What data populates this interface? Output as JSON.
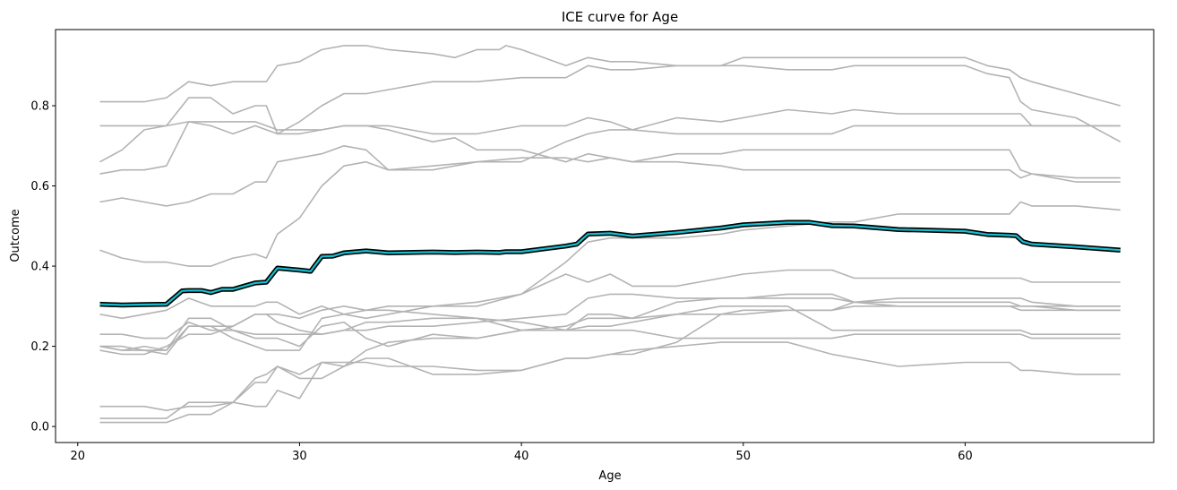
{
  "chart_data": {
    "type": "line",
    "title": "ICE curve for Age",
    "xlabel": "Age",
    "ylabel": "Outcome",
    "xlim": [
      19,
      68.5
    ],
    "ylim": [
      -0.04,
      0.99
    ],
    "xticks": [
      20,
      30,
      40,
      50,
      60
    ],
    "yticks": [
      0.0,
      0.2,
      0.4,
      0.6,
      0.8
    ],
    "xtick_labels": [
      "20",
      "30",
      "40",
      "50",
      "60"
    ],
    "ytick_labels": [
      "0.0",
      "0.2",
      "0.4",
      "0.6",
      "0.8"
    ],
    "grid": false,
    "colors": {
      "ice_line": "#b3b3b3",
      "average_outline": "#000000",
      "average_line": "#17becf",
      "axes": "#000000",
      "background": "#ffffff"
    },
    "ice_series": [
      {
        "x": [
          21,
          22,
          23,
          24,
          25,
          26,
          27,
          28,
          28.5,
          29,
          30,
          31,
          32,
          33,
          34,
          36,
          37,
          38,
          39,
          39.3,
          40,
          41,
          42,
          43,
          44,
          45,
          47,
          49,
          50,
          52,
          54,
          55,
          57,
          58,
          60,
          61,
          62,
          62.5,
          63,
          65,
          67
        ],
        "y": [
          0.81,
          0.81,
          0.81,
          0.82,
          0.86,
          0.85,
          0.86,
          0.86,
          0.86,
          0.9,
          0.91,
          0.94,
          0.95,
          0.95,
          0.94,
          0.93,
          0.92,
          0.94,
          0.94,
          0.95,
          0.94,
          0.92,
          0.9,
          0.92,
          0.91,
          0.91,
          0.9,
          0.9,
          0.92,
          0.92,
          0.92,
          0.92,
          0.92,
          0.92,
          0.92,
          0.9,
          0.89,
          0.87,
          0.86,
          0.83,
          0.8
        ]
      },
      {
        "x": [
          21,
          22,
          23,
          24,
          25,
          26,
          27,
          28,
          28.5,
          29,
          30,
          31,
          32,
          33,
          34,
          36,
          38,
          40,
          42,
          43,
          44,
          45,
          47,
          49,
          50,
          52,
          54,
          55,
          57,
          60,
          61,
          62,
          62.5,
          63,
          65,
          67
        ],
        "y": [
          0.66,
          0.69,
          0.74,
          0.75,
          0.82,
          0.82,
          0.78,
          0.8,
          0.8,
          0.73,
          0.76,
          0.8,
          0.83,
          0.83,
          0.84,
          0.86,
          0.86,
          0.87,
          0.87,
          0.9,
          0.89,
          0.89,
          0.9,
          0.9,
          0.9,
          0.89,
          0.89,
          0.9,
          0.9,
          0.9,
          0.88,
          0.87,
          0.81,
          0.79,
          0.77,
          0.71
        ]
      },
      {
        "x": [
          21,
          22,
          23,
          24,
          25,
          26,
          27,
          28,
          28.5,
          29,
          30,
          31,
          32,
          33,
          34,
          36,
          38,
          40,
          42,
          43,
          44,
          45,
          47,
          49,
          50,
          52,
          54,
          55,
          57,
          60,
          62,
          62.5,
          63,
          65,
          67
        ],
        "y": [
          0.75,
          0.75,
          0.75,
          0.75,
          0.76,
          0.76,
          0.76,
          0.76,
          0.75,
          0.74,
          0.74,
          0.74,
          0.75,
          0.75,
          0.75,
          0.73,
          0.73,
          0.75,
          0.75,
          0.77,
          0.76,
          0.74,
          0.73,
          0.73,
          0.73,
          0.73,
          0.73,
          0.75,
          0.75,
          0.75,
          0.75,
          0.75,
          0.75,
          0.75,
          0.75
        ]
      },
      {
        "x": [
          21,
          22,
          23,
          24,
          25,
          26,
          27,
          28,
          28.5,
          29,
          30,
          31,
          32,
          33,
          34,
          36,
          37,
          38,
          40,
          42,
          43,
          44,
          45,
          47,
          49,
          50,
          52,
          54,
          55,
          57,
          60,
          62,
          62.5,
          63,
          65,
          67
        ],
        "y": [
          0.63,
          0.64,
          0.64,
          0.65,
          0.76,
          0.75,
          0.73,
          0.75,
          0.74,
          0.73,
          0.73,
          0.74,
          0.75,
          0.75,
          0.74,
          0.71,
          0.72,
          0.69,
          0.69,
          0.66,
          0.68,
          0.67,
          0.66,
          0.66,
          0.65,
          0.64,
          0.64,
          0.64,
          0.64,
          0.64,
          0.64,
          0.64,
          0.62,
          0.63,
          0.62,
          0.62
        ]
      },
      {
        "x": [
          21,
          22,
          23,
          24,
          25,
          26,
          27,
          28,
          28.5,
          29,
          30,
          31,
          32,
          33,
          34,
          36,
          38,
          40,
          42,
          43,
          44,
          45,
          47,
          49,
          50,
          52,
          54,
          55,
          57,
          60,
          62,
          62.5,
          63,
          65,
          67
        ],
        "y": [
          0.56,
          0.57,
          0.56,
          0.55,
          0.56,
          0.58,
          0.58,
          0.61,
          0.61,
          0.66,
          0.67,
          0.68,
          0.7,
          0.69,
          0.64,
          0.65,
          0.66,
          0.67,
          0.67,
          0.66,
          0.67,
          0.66,
          0.68,
          0.68,
          0.69,
          0.69,
          0.69,
          0.69,
          0.69,
          0.69,
          0.69,
          0.64,
          0.63,
          0.61,
          0.61
        ]
      },
      {
        "x": [
          21,
          22,
          23,
          24,
          25,
          26,
          27,
          28,
          28.5,
          29,
          30,
          31,
          32,
          33,
          34,
          36,
          38,
          40,
          42,
          43,
          44,
          45,
          47,
          49,
          50,
          52,
          54,
          55,
          57,
          60,
          62,
          62.5,
          63,
          65,
          67
        ],
        "y": [
          0.44,
          0.42,
          0.41,
          0.41,
          0.4,
          0.4,
          0.42,
          0.43,
          0.42,
          0.48,
          0.52,
          0.6,
          0.65,
          0.66,
          0.64,
          0.64,
          0.66,
          0.66,
          0.71,
          0.73,
          0.74,
          0.74,
          0.77,
          0.76,
          0.77,
          0.79,
          0.78,
          0.79,
          0.78,
          0.78,
          0.78,
          0.78,
          0.75,
          0.75,
          0.75
        ]
      },
      {
        "x": [
          21,
          22,
          23,
          24,
          25,
          26,
          27,
          28,
          28.5,
          29,
          30,
          31,
          32,
          33,
          34,
          36,
          38,
          40,
          42,
          43,
          44,
          45,
          47,
          49,
          50,
          52,
          54,
          55,
          57,
          60,
          62,
          62.5,
          63,
          65,
          67
        ],
        "y": [
          0.19,
          0.18,
          0.18,
          0.2,
          0.23,
          0.23,
          0.25,
          0.28,
          0.28,
          0.28,
          0.27,
          0.29,
          0.3,
          0.29,
          0.3,
          0.3,
          0.31,
          0.33,
          0.41,
          0.46,
          0.47,
          0.47,
          0.47,
          0.48,
          0.49,
          0.5,
          0.51,
          0.51,
          0.53,
          0.53,
          0.53,
          0.56,
          0.55,
          0.55,
          0.54
        ]
      },
      {
        "x": [
          21,
          22,
          23,
          24,
          25,
          26,
          27,
          28,
          28.5,
          29,
          30,
          31,
          32,
          33,
          34,
          36,
          38,
          40,
          42,
          43,
          44,
          45,
          47,
          49,
          50,
          52,
          54,
          55,
          57,
          60,
          62,
          62.5,
          63,
          65,
          67
        ],
        "y": [
          0.28,
          0.27,
          0.28,
          0.29,
          0.32,
          0.3,
          0.3,
          0.3,
          0.31,
          0.31,
          0.28,
          0.3,
          0.28,
          0.27,
          0.28,
          0.3,
          0.3,
          0.33,
          0.38,
          0.36,
          0.38,
          0.35,
          0.35,
          0.37,
          0.38,
          0.39,
          0.39,
          0.37,
          0.37,
          0.37,
          0.37,
          0.37,
          0.36,
          0.36,
          0.36
        ]
      },
      {
        "x": [
          21,
          22,
          23,
          24,
          25,
          26,
          27,
          28,
          28.5,
          29,
          30,
          31,
          32,
          33,
          34,
          36,
          38,
          40,
          42,
          43,
          44,
          45,
          47,
          49,
          50,
          52,
          54,
          55,
          57,
          60,
          62,
          62.5,
          63,
          65,
          67
        ],
        "y": [
          0.23,
          0.23,
          0.22,
          0.22,
          0.26,
          0.24,
          0.24,
          0.23,
          0.23,
          0.23,
          0.23,
          0.23,
          0.24,
          0.24,
          0.25,
          0.25,
          0.26,
          0.27,
          0.28,
          0.32,
          0.33,
          0.33,
          0.32,
          0.32,
          0.32,
          0.33,
          0.33,
          0.31,
          0.3,
          0.3,
          0.3,
          0.3,
          0.3,
          0.3,
          0.3
        ]
      },
      {
        "x": [
          21,
          22,
          23,
          24,
          25,
          26,
          27,
          28,
          28.5,
          29,
          30,
          31,
          32,
          33,
          34,
          36,
          38,
          40,
          42,
          43,
          44,
          45,
          47,
          49,
          50,
          52,
          54,
          55,
          57,
          60,
          62,
          62.5,
          63,
          65,
          67
        ],
        "y": [
          0.2,
          0.2,
          0.19,
          0.19,
          0.25,
          0.25,
          0.25,
          0.28,
          0.28,
          0.26,
          0.24,
          0.23,
          0.24,
          0.26,
          0.26,
          0.27,
          0.27,
          0.24,
          0.24,
          0.28,
          0.28,
          0.27,
          0.28,
          0.28,
          0.29,
          0.29,
          0.29,
          0.31,
          0.32,
          0.32,
          0.32,
          0.32,
          0.31,
          0.3,
          0.3
        ]
      },
      {
        "x": [
          21,
          22,
          23,
          24,
          25,
          26,
          27,
          28,
          28.5,
          29,
          30,
          31,
          32,
          33,
          34,
          36,
          38,
          40,
          42,
          43,
          44,
          45,
          47,
          49,
          50,
          52,
          54,
          55,
          57,
          60,
          62,
          62.5,
          63,
          65,
          67
        ],
        "y": [
          0.2,
          0.19,
          0.2,
          0.19,
          0.27,
          0.27,
          0.24,
          0.22,
          0.22,
          0.22,
          0.2,
          0.25,
          0.26,
          0.22,
          0.2,
          0.23,
          0.22,
          0.24,
          0.24,
          0.25,
          0.25,
          0.26,
          0.28,
          0.3,
          0.3,
          0.3,
          0.24,
          0.24,
          0.24,
          0.24,
          0.24,
          0.24,
          0.23,
          0.23,
          0.23
        ]
      },
      {
        "x": [
          21,
          22,
          23,
          24,
          25,
          26,
          27,
          28,
          28.5,
          29,
          30,
          31,
          32,
          33,
          34,
          36,
          38,
          40,
          42,
          43,
          44,
          45,
          47,
          49,
          50,
          52,
          54,
          55,
          57,
          60,
          62,
          62.5,
          63,
          65,
          67
        ],
        "y": [
          0.2,
          0.19,
          0.19,
          0.18,
          0.25,
          0.25,
          0.22,
          0.2,
          0.19,
          0.19,
          0.19,
          0.27,
          0.28,
          0.29,
          0.29,
          0.28,
          0.27,
          0.26,
          0.24,
          0.24,
          0.24,
          0.24,
          0.22,
          0.22,
          0.22,
          0.22,
          0.22,
          0.23,
          0.23,
          0.23,
          0.23,
          0.23,
          0.22,
          0.22,
          0.22
        ]
      },
      {
        "x": [
          21,
          22,
          23,
          24,
          25,
          26,
          27,
          28,
          28.5,
          29,
          30,
          31,
          32,
          33,
          34,
          36,
          38,
          40,
          42,
          43,
          44,
          45,
          47,
          49,
          50,
          52,
          54,
          55,
          57,
          60,
          62,
          62.5,
          63,
          65,
          67
        ],
        "y": [
          0.05,
          0.05,
          0.05,
          0.04,
          0.05,
          0.05,
          0.06,
          0.11,
          0.11,
          0.15,
          0.13,
          0.16,
          0.15,
          0.17,
          0.17,
          0.13,
          0.13,
          0.14,
          0.17,
          0.17,
          0.18,
          0.19,
          0.2,
          0.21,
          0.21,
          0.21,
          0.18,
          0.17,
          0.15,
          0.16,
          0.16,
          0.14,
          0.14,
          0.13,
          0.13
        ]
      },
      {
        "x": [
          21,
          22,
          23,
          24,
          25,
          26,
          27,
          28,
          28.5,
          29,
          30,
          31,
          32,
          33,
          34,
          36,
          38,
          40,
          42,
          43,
          44,
          45,
          47,
          49,
          50,
          52,
          54,
          55,
          57,
          60,
          62,
          62.5,
          63,
          65,
          67
        ],
        "y": [
          0.02,
          0.02,
          0.02,
          0.02,
          0.06,
          0.06,
          0.06,
          0.12,
          0.13,
          0.15,
          0.12,
          0.12,
          0.15,
          0.19,
          0.21,
          0.22,
          0.22,
          0.24,
          0.25,
          0.27,
          0.27,
          0.27,
          0.31,
          0.32,
          0.32,
          0.32,
          0.32,
          0.31,
          0.31,
          0.31,
          0.31,
          0.3,
          0.3,
          0.29,
          0.29
        ]
      },
      {
        "x": [
          21,
          22,
          23,
          24,
          25,
          26,
          27,
          28,
          28.5,
          29,
          30,
          31,
          32,
          33,
          34,
          36,
          38,
          40,
          42,
          43,
          44,
          45,
          47,
          49,
          50,
          52,
          54,
          55,
          57,
          60,
          62,
          62.5,
          63,
          65,
          67
        ],
        "y": [
          0.01,
          0.01,
          0.01,
          0.01,
          0.03,
          0.03,
          0.06,
          0.05,
          0.05,
          0.09,
          0.07,
          0.16,
          0.16,
          0.16,
          0.15,
          0.15,
          0.14,
          0.14,
          0.17,
          0.17,
          0.18,
          0.18,
          0.21,
          0.28,
          0.28,
          0.29,
          0.29,
          0.3,
          0.3,
          0.3,
          0.3,
          0.29,
          0.29,
          0.29,
          0.29
        ]
      }
    ],
    "average_series": {
      "x": [
        21,
        22,
        23,
        24,
        24.7,
        25,
        25.6,
        26,
        26.5,
        27,
        27.5,
        28,
        28.5,
        29,
        30,
        30.5,
        31,
        31.5,
        32,
        33,
        34,
        36,
        37,
        38,
        39,
        39.3,
        40,
        41,
        42,
        42.5,
        43,
        44,
        45,
        47,
        49,
        50,
        52,
        53,
        54,
        55,
        57,
        58,
        60,
        61,
        62,
        62.3,
        62.6,
        63,
        65,
        67
      ],
      "y": [
        0.305,
        0.303,
        0.304,
        0.305,
        0.338,
        0.339,
        0.339,
        0.334,
        0.342,
        0.342,
        0.35,
        0.358,
        0.36,
        0.395,
        0.39,
        0.387,
        0.424,
        0.425,
        0.433,
        0.438,
        0.433,
        0.435,
        0.434,
        0.435,
        0.434,
        0.436,
        0.436,
        0.443,
        0.45,
        0.455,
        0.48,
        0.482,
        0.475,
        0.484,
        0.495,
        0.503,
        0.509,
        0.509,
        0.501,
        0.5,
        0.491,
        0.49,
        0.487,
        0.479,
        0.477,
        0.476,
        0.461,
        0.455,
        0.448,
        0.44
      ]
    }
  }
}
